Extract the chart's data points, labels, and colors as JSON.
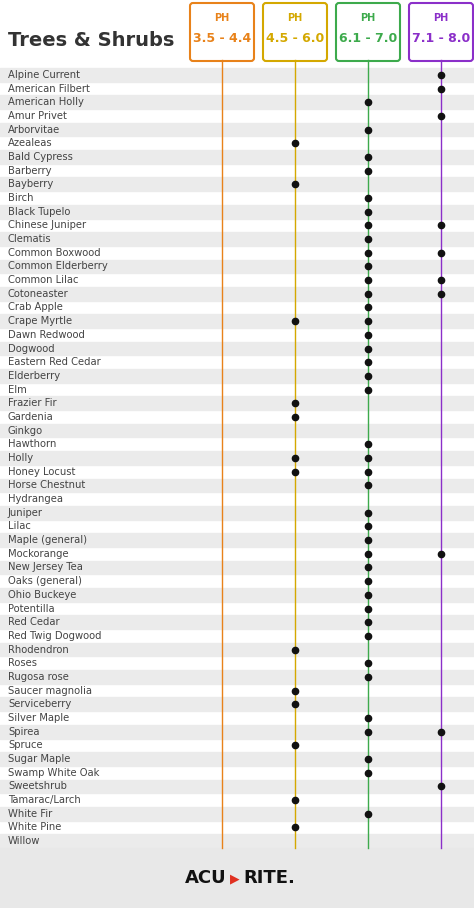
{
  "title": "Trees & Shrubs",
  "columns": [
    {
      "label": "PH",
      "range": "3.5 - 4.4",
      "color": "#E8821A"
    },
    {
      "label": "PH",
      "range": "4.5 - 6.0",
      "color": "#D4A800"
    },
    {
      "label": "PH",
      "range": "6.1 - 7.0",
      "color": "#3DAA4C"
    },
    {
      "label": "PH",
      "range": "7.1 - 8.0",
      "color": "#8B2FC9"
    }
  ],
  "plants": [
    {
      "name": "Alpine Current",
      "dots": [
        3
      ]
    },
    {
      "name": "American Filbert",
      "dots": [
        3
      ]
    },
    {
      "name": "American Holly",
      "dots": [
        2
      ]
    },
    {
      "name": "Amur Privet",
      "dots": [
        3
      ]
    },
    {
      "name": "Arborvitae",
      "dots": [
        2
      ]
    },
    {
      "name": "Azealeas",
      "dots": [
        1
      ]
    },
    {
      "name": "Bald Cypress",
      "dots": [
        2
      ]
    },
    {
      "name": "Barberry",
      "dots": [
        2
      ]
    },
    {
      "name": "Bayberry",
      "dots": [
        1
      ]
    },
    {
      "name": "Birch",
      "dots": [
        2
      ]
    },
    {
      "name": "Black Tupelo",
      "dots": [
        2
      ]
    },
    {
      "name": "Chinese Juniper",
      "dots": [
        2,
        3
      ]
    },
    {
      "name": "Clematis",
      "dots": [
        2
      ]
    },
    {
      "name": "Common Boxwood",
      "dots": [
        2,
        3
      ]
    },
    {
      "name": "Common Elderberry",
      "dots": [
        2
      ]
    },
    {
      "name": "Common Lilac",
      "dots": [
        2,
        3
      ]
    },
    {
      "name": "Cotoneaster",
      "dots": [
        2,
        3
      ]
    },
    {
      "name": "Crab Apple",
      "dots": [
        2
      ]
    },
    {
      "name": "Crape Myrtle",
      "dots": [
        1,
        2
      ]
    },
    {
      "name": "Dawn Redwood",
      "dots": [
        2
      ]
    },
    {
      "name": "Dogwood",
      "dots": [
        2
      ]
    },
    {
      "name": "Eastern Red Cedar",
      "dots": [
        2
      ]
    },
    {
      "name": "Elderberry",
      "dots": [
        2
      ]
    },
    {
      "name": "Elm",
      "dots": [
        2
      ]
    },
    {
      "name": "Frazier Fir",
      "dots": [
        1
      ]
    },
    {
      "name": "Gardenia",
      "dots": [
        1
      ]
    },
    {
      "name": "Ginkgo",
      "dots": []
    },
    {
      "name": "Hawthorn",
      "dots": [
        2
      ]
    },
    {
      "name": "Holly",
      "dots": [
        1,
        2
      ]
    },
    {
      "name": "Honey Locust",
      "dots": [
        1,
        2
      ]
    },
    {
      "name": "Horse Chestnut",
      "dots": [
        2
      ]
    },
    {
      "name": "Hydrangea",
      "dots": []
    },
    {
      "name": "Juniper",
      "dots": [
        2
      ]
    },
    {
      "name": "Lilac",
      "dots": [
        2
      ]
    },
    {
      "name": "Maple (general)",
      "dots": [
        2
      ]
    },
    {
      "name": "Mockorange",
      "dots": [
        2,
        3
      ]
    },
    {
      "name": "New Jersey Tea",
      "dots": [
        2
      ]
    },
    {
      "name": "Oaks (general)",
      "dots": [
        2
      ]
    },
    {
      "name": "Ohio Buckeye",
      "dots": [
        2
      ]
    },
    {
      "name": "Potentilla",
      "dots": [
        2
      ]
    },
    {
      "name": "Red Cedar",
      "dots": [
        2
      ]
    },
    {
      "name": "Red Twig Dogwood",
      "dots": [
        2
      ]
    },
    {
      "name": "Rhodendron",
      "dots": [
        1
      ]
    },
    {
      "name": "Roses",
      "dots": [
        2
      ]
    },
    {
      "name": "Rugosa rose",
      "dots": [
        2
      ]
    },
    {
      "name": "Saucer magnolia",
      "dots": [
        1
      ]
    },
    {
      "name": "Serviceberry",
      "dots": [
        1
      ]
    },
    {
      "name": "Silver Maple",
      "dots": [
        2
      ]
    },
    {
      "name": "Spirea",
      "dots": [
        2,
        3
      ]
    },
    {
      "name": "Spruce",
      "dots": [
        1
      ]
    },
    {
      "name": "Sugar Maple",
      "dots": [
        2
      ]
    },
    {
      "name": "Swamp White Oak",
      "dots": [
        2
      ]
    },
    {
      "name": "Sweetshrub",
      "dots": [
        3
      ]
    },
    {
      "name": "Tamarac/Larch",
      "dots": [
        1
      ]
    },
    {
      "name": "White Fir",
      "dots": [
        2
      ]
    },
    {
      "name": "White Pine",
      "dots": [
        1
      ]
    },
    {
      "name": "Willow",
      "dots": []
    }
  ],
  "dot_color": "#111111",
  "bg_color": "#FFFFFF",
  "stripe_color": "#EBEBEB",
  "footer_bg": "#E8E8E8",
  "footer_acu": "ACU",
  "footer_rite": "RITE.",
  "footer_color": "#111111",
  "footer_arrow_color": "#E03020",
  "title_color": "#333333",
  "name_color": "#444444"
}
